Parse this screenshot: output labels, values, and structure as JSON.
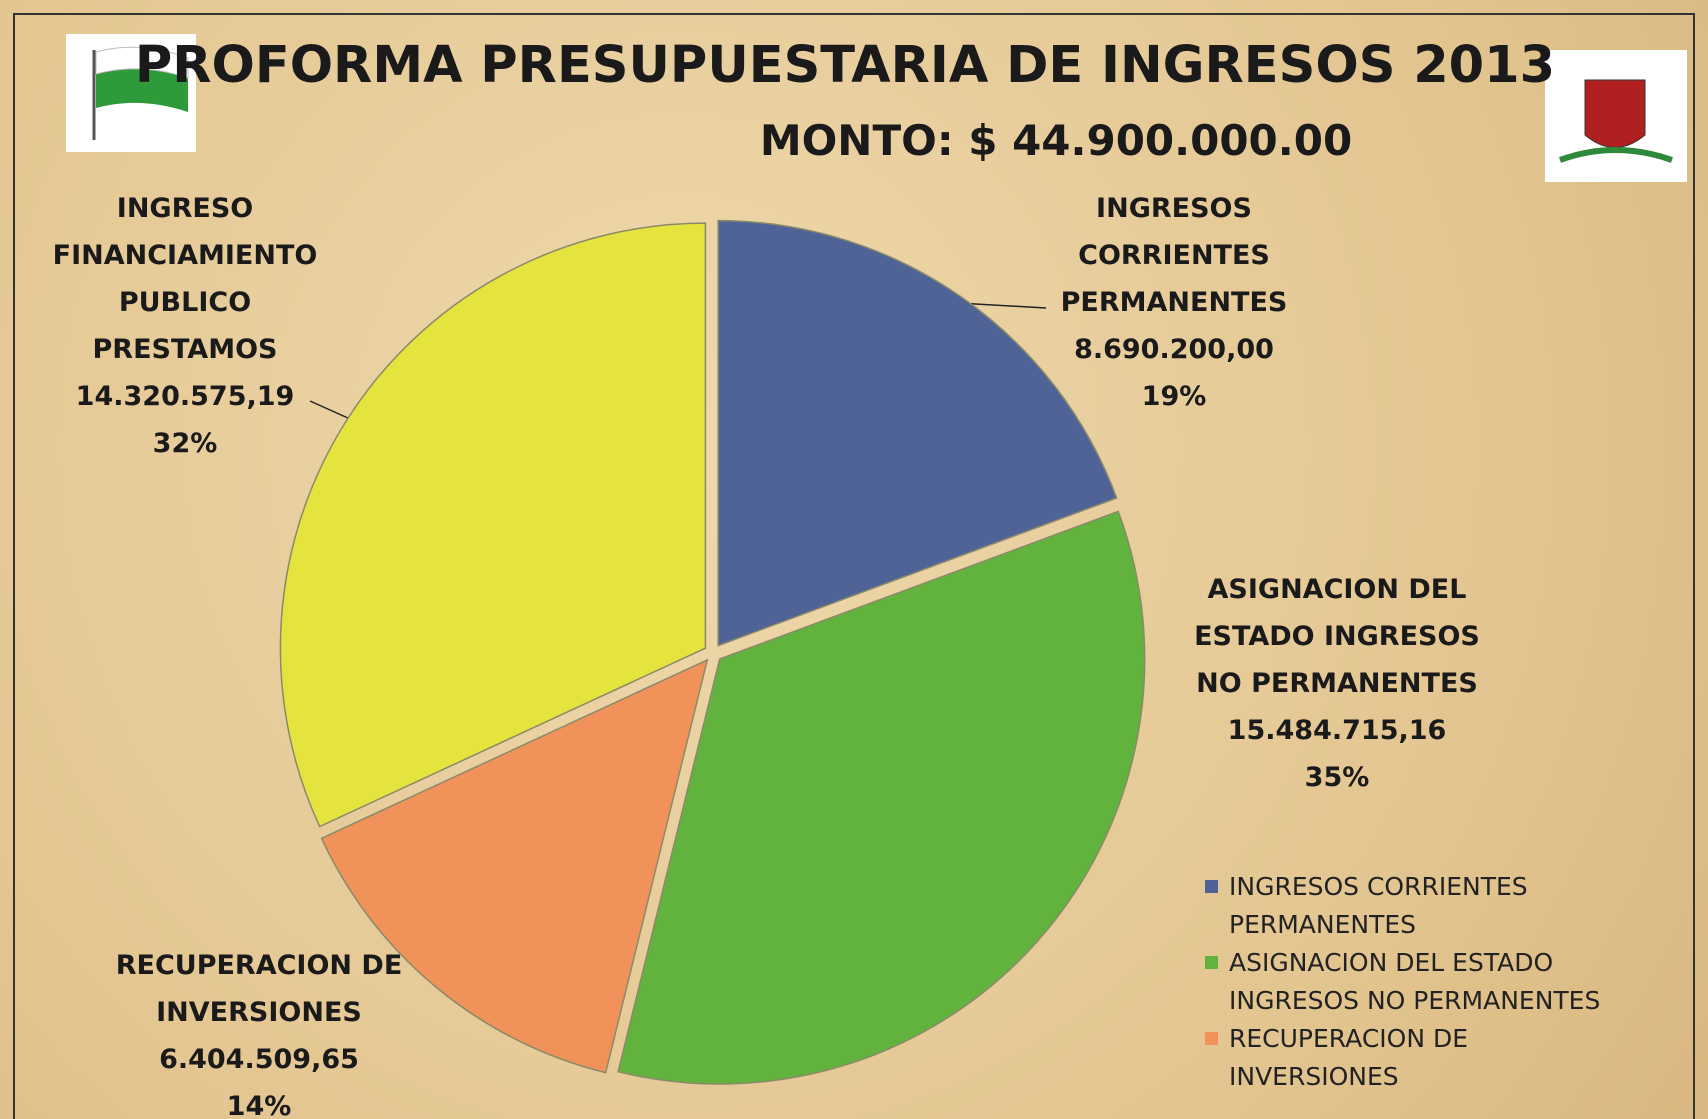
{
  "chart_data": {
    "type": "pie",
    "title": "PROFORMA PRESUPUESTARIA DE INGRESOS 2013",
    "subtitle": "MONTO: $ 44.900.000.00",
    "categories": [
      "INGRESOS CORRIENTES PERMANENTES",
      "ASIGNACION DEL ESTADO INGRESOS NO PERMANENTES",
      "RECUPERACION DE INVERSIONES",
      "INGRESO FINANCIAMIENTO PUBLICO PRESTAMOS"
    ],
    "values": [
      8690200.0,
      15484715.16,
      6404509.65,
      14320575.19
    ],
    "value_labels": [
      "8.690.200,00",
      "15.484.715,16",
      "6.404.509,65",
      "14.320.575,19"
    ],
    "shares": [
      19,
      35,
      14,
      32
    ],
    "share_labels": [
      "19%",
      "35%",
      "14%",
      "32%"
    ],
    "colors": [
      "#4f6396",
      "#62b33d",
      "#f0925a",
      "#e5e33d"
    ],
    "legend": "bottom-right"
  }
}
